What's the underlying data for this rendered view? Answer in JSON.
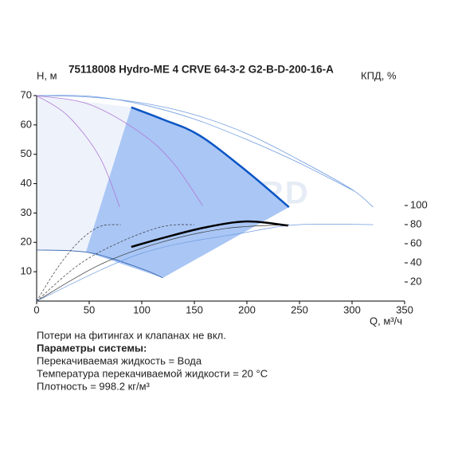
{
  "chart_data": {
    "type": "line",
    "title": "75118008 Hydro-ME 4 CRVE 64-3-2 G2-B-D-200-16-A",
    "y_label": "H, м",
    "y2_label": "КПД, %",
    "x_label": "Q, м³/ч",
    "watermark": "VANDJORD",
    "xlim": [
      0,
      350
    ],
    "xticks": [
      0,
      50,
      100,
      150,
      200,
      250,
      300,
      350
    ],
    "ylim": [
      0,
      70
    ],
    "yticks": [
      10,
      20,
      30,
      40,
      50,
      60,
      70
    ],
    "y2lim": [
      0,
      215
    ],
    "y2ticks": [
      20,
      40,
      60,
      80,
      100
    ],
    "areas": [
      {
        "color": "#eef2fb",
        "x": [
          0,
          90,
          47,
          0
        ],
        "values": [
          70,
          66,
          16.8,
          17.4
        ]
      },
      {
        "color": "#a9c6f5",
        "x": [
          90,
          120,
          155,
          200,
          240,
          120,
          47
        ],
        "values": [
          66,
          61.9,
          56.4,
          44.2,
          32,
          7.9,
          16.8
        ]
      }
    ],
    "series": [
      {
        "color": "#6e9be0",
        "width": 0.8,
        "x": [
          0,
          50,
          100,
          150,
          200,
          250,
          300,
          320
        ],
        "values": [
          70,
          69.5,
          67.5,
          63.5,
          57,
          48,
          38,
          32
        ]
      },
      {
        "color": "#6e9be0",
        "width": 0.8,
        "x": [
          0,
          50,
          100,
          150,
          200,
          250,
          302
        ],
        "values": [
          70,
          69.8,
          67,
          62,
          55,
          47,
          37.5
        ]
      },
      {
        "color": "#b07ad6",
        "width": 0.8,
        "x": [
          0,
          30,
          60,
          79
        ],
        "values": [
          70,
          63,
          49,
          32
        ]
      },
      {
        "color": "#b07ad6",
        "width": 0.8,
        "x": [
          0,
          50,
          100,
          130,
          158
        ],
        "values": [
          70,
          67,
          57,
          47,
          32.5
        ]
      },
      {
        "color": "#0a55c4",
        "width": 2.5,
        "x": [
          90,
          120,
          155,
          200,
          240
        ],
        "values": [
          66,
          61.9,
          56.4,
          44.2,
          32
        ]
      },
      {
        "color": "#2f5faa",
        "width": 0.8,
        "x": [
          0,
          50,
          100,
          120
        ],
        "values": [
          17.4,
          16.5,
          11,
          7.9
        ]
      },
      {
        "color": "#333333",
        "width": 0.7,
        "dash": true,
        "axis": "y2",
        "x": [
          0,
          20,
          40,
          60,
          80
        ],
        "values": [
          0,
          35,
          62,
          78,
          80
        ]
      },
      {
        "color": "#333333",
        "width": 0.7,
        "dash": true,
        "axis": "y2",
        "x": [
          0,
          40,
          80,
          120,
          150
        ],
        "values": [
          0,
          38,
          62,
          78,
          80
        ]
      },
      {
        "color": "#333333",
        "width": 0.7,
        "axis": "y2",
        "x": [
          0,
          60,
          120,
          180,
          240
        ],
        "values": [
          0,
          38,
          62,
          76,
          80
        ]
      },
      {
        "color": "#6e9be0",
        "width": 0.7,
        "axis": "y2",
        "x": [
          0,
          100,
          200,
          250,
          320
        ],
        "values": [
          0,
          50,
          72,
          80,
          80
        ]
      },
      {
        "color": "#000000",
        "width": 2.5,
        "axis": "y2",
        "x": [
          90,
          120,
          160,
          200,
          239
        ],
        "values": [
          56.7,
          66,
          77,
          83.3,
          79
        ]
      }
    ]
  },
  "notes": [
    "Потери на фитингах и клапанах не вкл.",
    "Параметры системы:",
    "Перекачиваемая жидкость = Вода",
    "Температура перекачиваемой жидкости = 20 °C",
    "Плотность = 998.2 кг/м³"
  ]
}
